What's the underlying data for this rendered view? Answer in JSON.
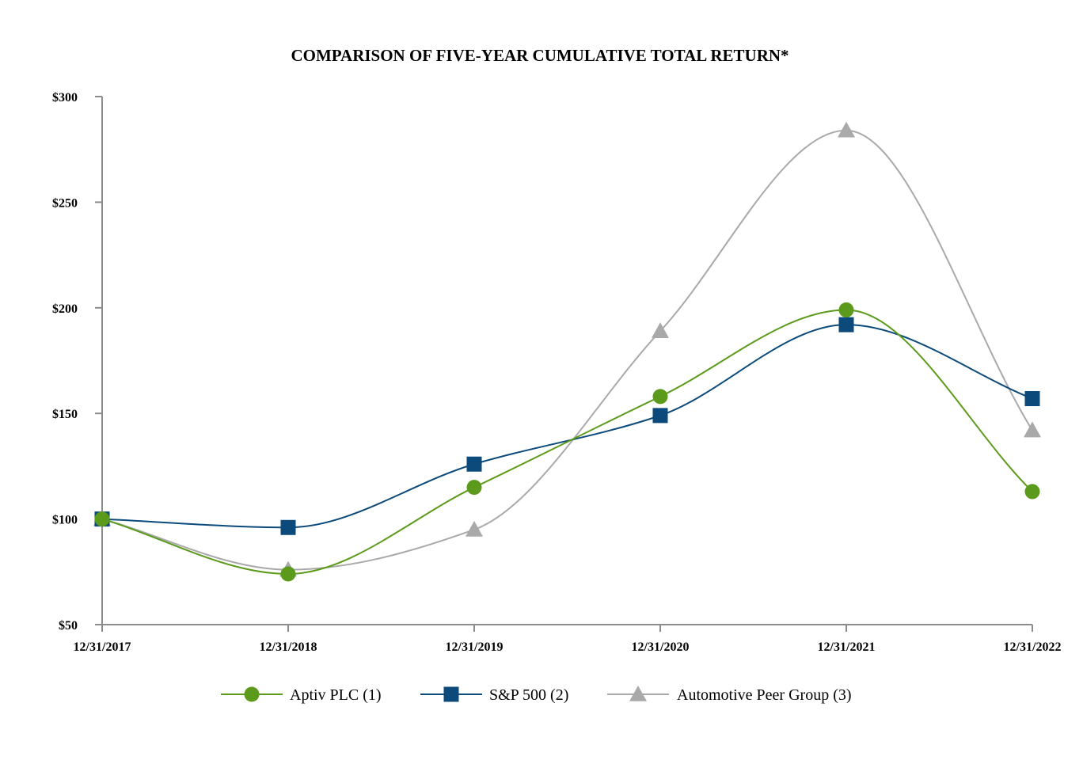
{
  "chart_data": {
    "type": "line",
    "title": "COMPARISON OF FIVE-YEAR CUMULATIVE TOTAL RETURN*",
    "xlabel": "",
    "ylabel": "",
    "categories": [
      "12/31/2017",
      "12/31/2018",
      "12/31/2019",
      "12/31/2020",
      "12/31/2021",
      "12/31/2022"
    ],
    "y_ticks": [
      50,
      100,
      150,
      200,
      250,
      300
    ],
    "y_tick_labels": [
      "$50",
      "$100",
      "$150",
      "$200",
      "$250",
      "$300"
    ],
    "ylim": [
      50,
      300
    ],
    "grid": false,
    "smooth": true,
    "legend_position": "bottom",
    "series": [
      {
        "name": "Aptiv PLC (1)",
        "color": "#5b9a1a",
        "marker": "circle",
        "values": [
          100,
          74,
          115,
          158,
          199,
          113
        ]
      },
      {
        "name": "S&P 500 (2)",
        "color": "#0b4a7a",
        "marker": "square",
        "values": [
          100,
          96,
          126,
          149,
          192,
          157
        ]
      },
      {
        "name": "Automotive Peer Group (3)",
        "color": "#a9a9a9",
        "marker": "triangle",
        "values": [
          100,
          76,
          95,
          189,
          284,
          142
        ]
      }
    ]
  }
}
